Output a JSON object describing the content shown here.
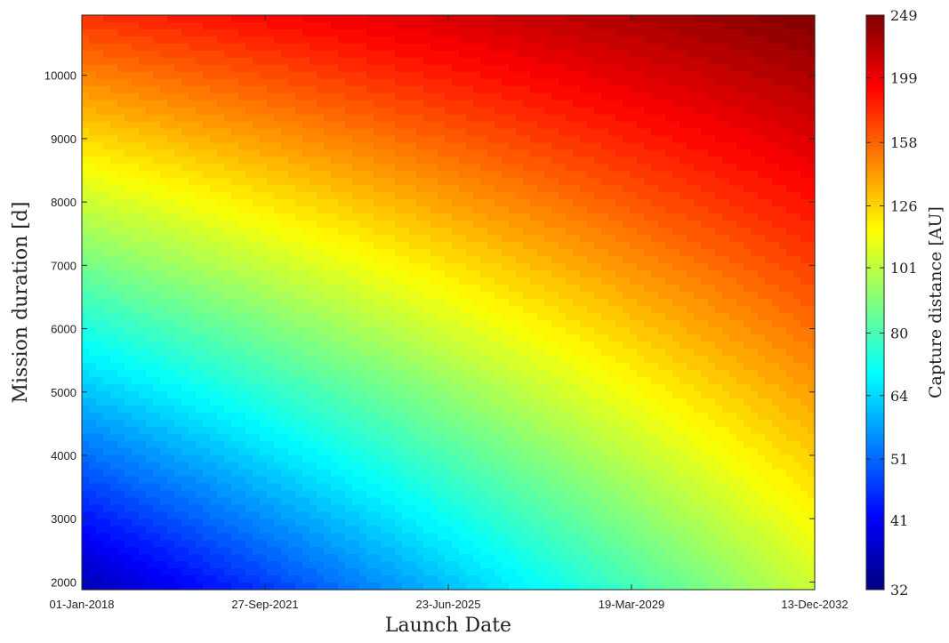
{
  "chart_data": {
    "type": "heatmap",
    "xlabel": "Launch Date",
    "ylabel": "Mission duration [d]",
    "colorbar_label": "Capture distance [AU]",
    "colormap": "jet",
    "x_tick_labels": [
      "01-Jan-2018",
      "27-Sep-2021",
      "23-Jun-2025",
      "19-Mar-2029",
      "13-Dec-2032"
    ],
    "x_range": [
      "01-Jan-2018",
      "13-Dec-2032"
    ],
    "y_ticks": [
      2000,
      3000,
      4000,
      5000,
      6000,
      7000,
      8000,
      9000,
      10000
    ],
    "y_range": [
      1880,
      10950
    ],
    "colorbar_ticks": [
      32,
      41,
      51,
      64,
      80,
      101,
      126,
      158,
      199,
      249
    ],
    "colorbar_scale": "log",
    "color_range": [
      32,
      249
    ],
    "grid": false,
    "surface_samples": {
      "launch_dates": [
        "01-Jan-2018",
        "13-Dec-2032"
      ],
      "mission_durations": [
        2000,
        10950
      ],
      "values": [
        [
          36,
          105
        ],
        [
          175,
          249
        ]
      ]
    }
  }
}
